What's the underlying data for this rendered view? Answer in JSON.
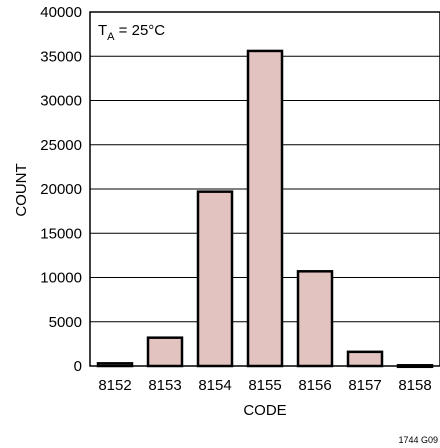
{
  "chart_data": {
    "type": "bar",
    "categories": [
      "8152",
      "8153",
      "8154",
      "8155",
      "8156",
      "8157",
      "8158"
    ],
    "values": [
      300,
      3200,
      19700,
      35600,
      10700,
      1600,
      80
    ],
    "ylabel": "COUNT",
    "xlabel": "CODE",
    "ylim": [
      0,
      40000
    ],
    "yticks": [
      0,
      5000,
      10000,
      15000,
      20000,
      25000,
      30000,
      35000,
      40000
    ],
    "grid": true,
    "annotation": {
      "prefix": "T",
      "subscript": "A",
      "suffix": " = 25°C"
    },
    "figure_id": "1744 G09",
    "colors": {
      "bar_fill": "#e2c3c0",
      "bar_stroke": "#000000",
      "grid": "#000000",
      "background": "#ffffff"
    }
  }
}
